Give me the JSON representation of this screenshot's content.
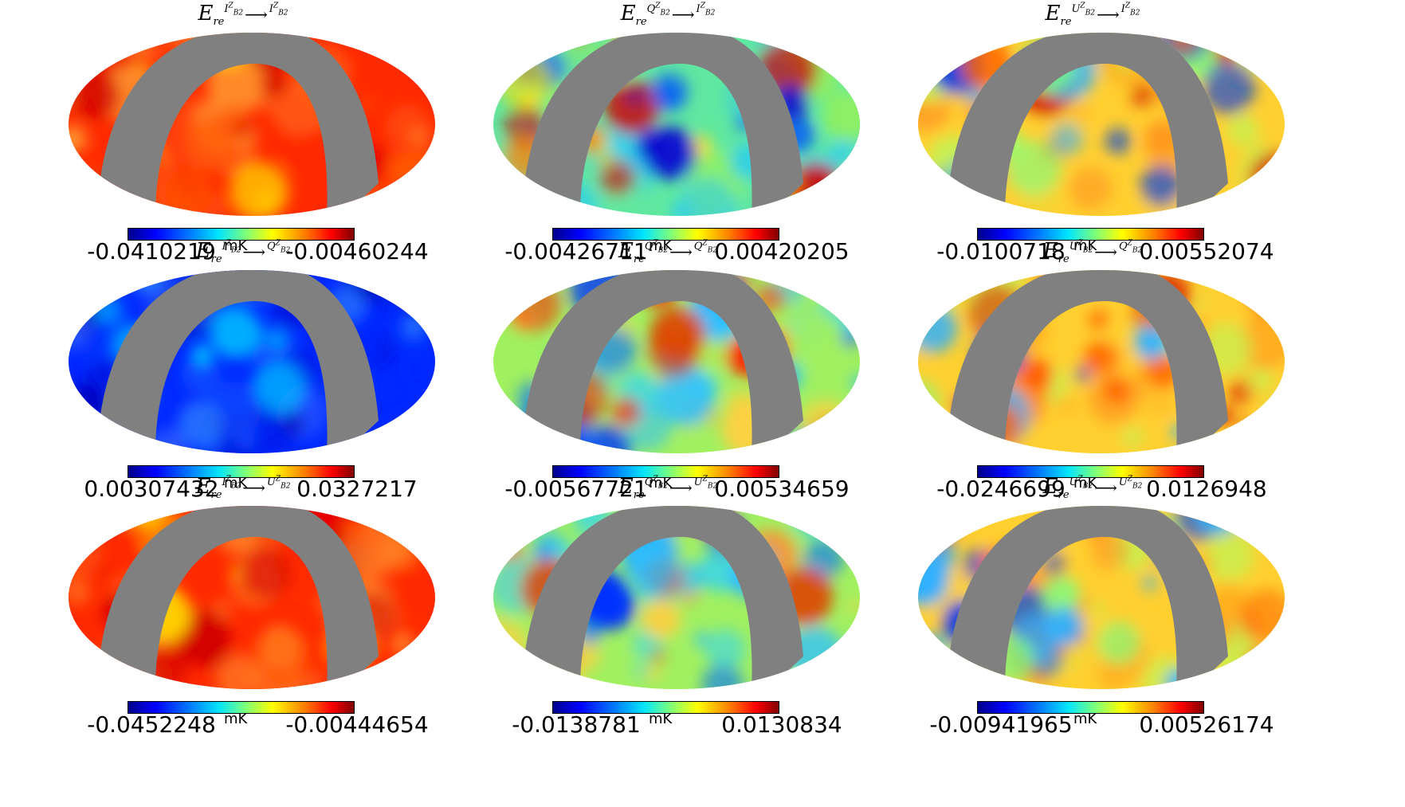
{
  "unit": "mK",
  "panels": [
    {
      "base": "E",
      "sub": "re",
      "src": "I",
      "dst": "I",
      "vmin": "-0.0410219",
      "vmax": "-0.00460244",
      "scheme": "red"
    },
    {
      "base": "E",
      "sub": "re",
      "src": "Q",
      "dst": "I",
      "vmin": "-0.00426711",
      "vmax": "0.00420205",
      "scheme": "mixed"
    },
    {
      "base": "E",
      "sub": "re",
      "src": "U",
      "dst": "I",
      "vmin": "-0.0100718",
      "vmax": "0.00552074",
      "scheme": "warm"
    },
    {
      "base": "E",
      "sub": "re",
      "src": "I",
      "dst": "Q",
      "vmin": "0.00307432",
      "vmax": "0.0327217",
      "scheme": "blue"
    },
    {
      "base": "E",
      "sub": "re",
      "src": "Q",
      "dst": "Q",
      "vmin": "-0.00567721",
      "vmax": "0.00534659",
      "scheme": "mixed2"
    },
    {
      "base": "E",
      "sub": "re",
      "src": "U",
      "dst": "Q",
      "vmin": "-0.0246699",
      "vmax": "0.0126948",
      "scheme": "warm"
    },
    {
      "base": "E",
      "sub": "re",
      "src": "I",
      "dst": "U",
      "vmin": "-0.0452248",
      "vmax": "-0.00444654",
      "scheme": "red"
    },
    {
      "base": "E",
      "sub": "re",
      "src": "Q",
      "dst": "U",
      "vmin": "-0.0138781",
      "vmax": "0.0130834",
      "scheme": "mixed2"
    },
    {
      "base": "E",
      "sub": "re",
      "src": "U",
      "dst": "U",
      "vmin": "-0.00941965",
      "vmax": "0.00526174",
      "scheme": "warm"
    }
  ],
  "mask_color": "#808080"
}
